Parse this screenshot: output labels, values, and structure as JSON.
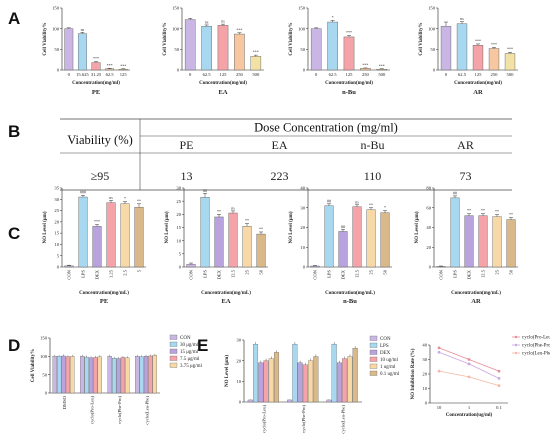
{
  "panel_letters": [
    "A",
    "B",
    "C",
    "D",
    "E"
  ],
  "chart_data": [
    {
      "id": "A1",
      "type": "bar",
      "title": "PE",
      "ylabel": "Cell Viability%",
      "xlabel": "Concentration(mg/ml)",
      "categories": [
        "0",
        "15.625",
        "31.25",
        "62.5",
        "125"
      ],
      "values": [
        100,
        88,
        18,
        3,
        2
      ],
      "errors": [
        2,
        3,
        2,
        1,
        1
      ],
      "sig": [
        "",
        "ns",
        "***",
        "***",
        "***"
      ],
      "ylim": [
        0,
        150
      ],
      "yticks": [
        0,
        50,
        100,
        150
      ],
      "colors": [
        "#c9b6e4",
        "#a8d8f0",
        "#f4a3a8",
        "#f6c7a1",
        "#f3e2a6"
      ]
    },
    {
      "id": "A2",
      "type": "bar",
      "title": "EA",
      "ylabel": "Cell Viability%",
      "xlabel": "Concentration(mg/ml)",
      "categories": [
        "0",
        "62.5",
        "125",
        "250",
        "500"
      ],
      "values": [
        122,
        106,
        108,
        87,
        33
      ],
      "errors": [
        3,
        3,
        3,
        3,
        3
      ],
      "sig": [
        "",
        "ns",
        "ns",
        "***",
        "***"
      ],
      "ylim": [
        0,
        150
      ],
      "yticks": [
        0,
        50,
        100,
        150
      ],
      "colors": [
        "#c9b6e4",
        "#a8d8f0",
        "#f4a3a8",
        "#f6c7a1",
        "#f3e2a6"
      ]
    },
    {
      "id": "A3",
      "type": "bar",
      "title": "n-Bu",
      "ylabel": "Cell Viability%",
      "xlabel": "Concentration(mg/ml)",
      "categories": [
        "0",
        "62.5",
        "125",
        "250",
        "500"
      ],
      "values": [
        100,
        116,
        80,
        4,
        2
      ],
      "errors": [
        2,
        4,
        3,
        1,
        1
      ],
      "sig": [
        "",
        "*",
        "***",
        "***",
        "***"
      ],
      "ylim": [
        0,
        150
      ],
      "yticks": [
        0,
        50,
        100,
        150
      ],
      "colors": [
        "#c9b6e4",
        "#a8d8f0",
        "#f4a3a8",
        "#f6c7a1",
        "#f3e2a6"
      ]
    },
    {
      "id": "A4",
      "type": "bar",
      "title": "AR",
      "ylabel": "Cell Viability%",
      "xlabel": "Concentration(mg/ml)",
      "categories": [
        "0",
        "62.5",
        "125",
        "250",
        "500"
      ],
      "values": [
        106,
        112,
        60,
        52,
        40
      ],
      "errors": [
        10,
        5,
        3,
        3,
        3
      ],
      "sig": [
        "",
        "ns",
        "***",
        "***",
        "***"
      ],
      "ylim": [
        0,
        150
      ],
      "yticks": [
        0,
        50,
        100,
        150
      ],
      "colors": [
        "#c9b6e4",
        "#a8d8f0",
        "#f4a3a8",
        "#f6c7a1",
        "#f3e2a6"
      ]
    },
    {
      "id": "B",
      "type": "table",
      "header": [
        "Viability (%)",
        "Dose Concentration (mg/ml)"
      ],
      "columns": [
        "PE",
        "EA",
        "n-Bu",
        "AR"
      ],
      "rows": [
        [
          "≥95",
          "13",
          "223",
          "110",
          "73"
        ]
      ]
    },
    {
      "id": "C1",
      "type": "bar",
      "title": "PE",
      "ylabel": "NO Level (μm)",
      "xlabel": "Concentration(mg/mL)",
      "categories": [
        "CON",
        "LPS",
        "DEX",
        "1.25",
        "2.5",
        "5"
      ],
      "values": [
        0.5,
        31,
        18,
        28.5,
        28,
        26.5
      ],
      "errors": [
        0.3,
        0.8,
        0.8,
        1,
        1,
        1.5
      ],
      "sig": [
        "",
        "###",
        "***",
        "ns",
        "*",
        "**"
      ],
      "ylim": [
        0,
        35
      ],
      "yticks": [
        0,
        5,
        10,
        15,
        20,
        25,
        30,
        35
      ],
      "colors": [
        "#c9b6e4",
        "#a8d8f0",
        "#b9a3de",
        "#f4a3a8",
        "#f6d9a6",
        "#d9b98a"
      ]
    },
    {
      "id": "C2",
      "type": "bar",
      "title": "EA",
      "ylabel": "NO Level (μm)",
      "xlabel": "Concentration(mg/mL)",
      "categories": [
        "CON",
        "LPS",
        "DEX",
        "12.5",
        "25",
        "50"
      ],
      "values": [
        1,
        26.5,
        19,
        20.5,
        15.5,
        12.5
      ],
      "errors": [
        0.5,
        1.5,
        1,
        0.8,
        1,
        0.8
      ],
      "sig": [
        "",
        "##",
        "**",
        "ns",
        "**",
        "**"
      ],
      "ylim": [
        0,
        30
      ],
      "yticks": [
        0,
        5,
        10,
        15,
        20,
        25,
        30
      ],
      "colors": [
        "#c9b6e4",
        "#a8d8f0",
        "#b9a3de",
        "#f4a3a8",
        "#f6d9a6",
        "#d9b98a"
      ]
    },
    {
      "id": "C3",
      "type": "bar",
      "title": "n-Bu",
      "ylabel": "NO Level (μm)",
      "xlabel": "Concentration(mg/mL)",
      "categories": [
        "CON",
        "LPS",
        "DEX",
        "12.5",
        "25",
        "50"
      ],
      "values": [
        0.5,
        31,
        18,
        30.5,
        29,
        27.5
      ],
      "errors": [
        0.3,
        1,
        1,
        1,
        1,
        1
      ],
      "sig": [
        "",
        "##",
        "##",
        "ns",
        "**",
        "*"
      ],
      "ylim": [
        0,
        40
      ],
      "yticks": [
        0,
        10,
        20,
        30,
        40
      ],
      "colors": [
        "#c9b6e4",
        "#a8d8f0",
        "#b9a3de",
        "#f4a3a8",
        "#f6d9a6",
        "#d9b98a"
      ]
    },
    {
      "id": "C4",
      "type": "bar",
      "title": "AR",
      "ylabel": "NO Level (μm)",
      "xlabel": "Concentration(mg/mL)",
      "categories": [
        "CON",
        "LPS",
        "DEX",
        "12.5",
        "25",
        "50"
      ],
      "values": [
        0.5,
        70,
        52,
        52,
        51,
        48
      ],
      "errors": [
        0.5,
        2,
        2,
        2,
        2,
        2
      ],
      "sig": [
        "",
        "##",
        "**",
        "**",
        "**",
        "**"
      ],
      "ylim": [
        0,
        80
      ],
      "yticks": [
        0,
        20,
        40,
        60,
        80
      ],
      "colors": [
        "#c9b6e4",
        "#a8d8f0",
        "#b9a3de",
        "#f4a3a8",
        "#f6d9a6",
        "#d9b98a"
      ]
    },
    {
      "id": "D",
      "type": "bar",
      "ylabel": "Cell Viability%",
      "categories": [
        "DMSO",
        "cyclo(Pro-Leu)",
        "cyclo(Phe-Pro)",
        "cyclo(Leu-Phe)"
      ],
      "series": [
        {
          "name": "CON",
          "values": [
            100,
            100,
            100,
            100
          ],
          "errors": [
            4,
            4,
            4,
            4
          ]
        },
        {
          "name": "30 μg/ml",
          "values": [
            100,
            98,
            95,
            99
          ],
          "errors": [
            4,
            4,
            4,
            4
          ]
        },
        {
          "name": "15 μg/ml",
          "values": [
            101,
            96,
            94,
            100
          ],
          "errors": [
            4,
            4,
            4,
            4
          ]
        },
        {
          "name": "7.5 μg/ml",
          "values": [
            99,
            97,
            97,
            101
          ],
          "errors": [
            4,
            4,
            4,
            4
          ]
        },
        {
          "name": "3.75 μg/ml",
          "values": [
            100,
            99,
            96,
            103
          ],
          "errors": [
            4,
            4,
            4,
            4
          ]
        }
      ],
      "ylim": [
        0,
        150
      ],
      "yticks": [
        0,
        50,
        100,
        150
      ],
      "colors": [
        "#c9b6e4",
        "#a8d8f0",
        "#b9a3de",
        "#f4a3a8",
        "#f6d9a6"
      ]
    },
    {
      "id": "E1",
      "type": "bar",
      "ylabel": "NO Level (μm)",
      "categories": [
        "cyclo(Pro-Leu)",
        "cyclo(Phe-Pro)",
        "cyclo(Leu-Phe)"
      ],
      "series": [
        {
          "name": "CON",
          "values": [
            1,
            1,
            1
          ],
          "errors": [
            0.3,
            0.3,
            0.3
          ]
        },
        {
          "name": "LPS",
          "values": [
            28,
            28,
            28
          ],
          "errors": [
            1,
            1,
            1
          ]
        },
        {
          "name": "DEX",
          "values": [
            19,
            19,
            19
          ],
          "errors": [
            1,
            1,
            1
          ]
        },
        {
          "name": "10 ug/ml",
          "values": [
            20,
            18,
            21
          ],
          "errors": [
            1,
            1,
            1
          ]
        },
        {
          "name": "1 ug/ml",
          "values": [
            21,
            20,
            22
          ],
          "errors": [
            1,
            1,
            1
          ]
        },
        {
          "name": "0.1 ug/ml",
          "values": [
            24,
            22,
            26
          ],
          "errors": [
            1,
            1,
            1
          ]
        }
      ],
      "ylim": [
        0,
        30
      ],
      "yticks": [
        0,
        10,
        20,
        30
      ],
      "colors": [
        "#c9b6e4",
        "#a8d8f0",
        "#b9a3de",
        "#f4a3a8",
        "#f6d9a6",
        "#d9b98a"
      ]
    },
    {
      "id": "E2",
      "type": "line",
      "ylabel": "NO Inhibition Rate (%)",
      "xlabel": "Concentration(ug/ml)",
      "x": [
        "10",
        "1",
        "0.1"
      ],
      "series": [
        {
          "name": "cyclo(Pro-Leu)",
          "values": [
            38,
            30,
            22
          ],
          "color": "#e88c9a"
        },
        {
          "name": "cyclo(Phe-Pro)",
          "values": [
            35,
            27,
            17
          ],
          "color": "#c9a7e0"
        },
        {
          "name": "cyclo(Leu-Phe)",
          "values": [
            22,
            18,
            12
          ],
          "color": "#f3b8a6"
        }
      ],
      "ylim": [
        0,
        40
      ],
      "yticks": [
        0,
        10,
        20,
        30,
        40
      ]
    }
  ]
}
